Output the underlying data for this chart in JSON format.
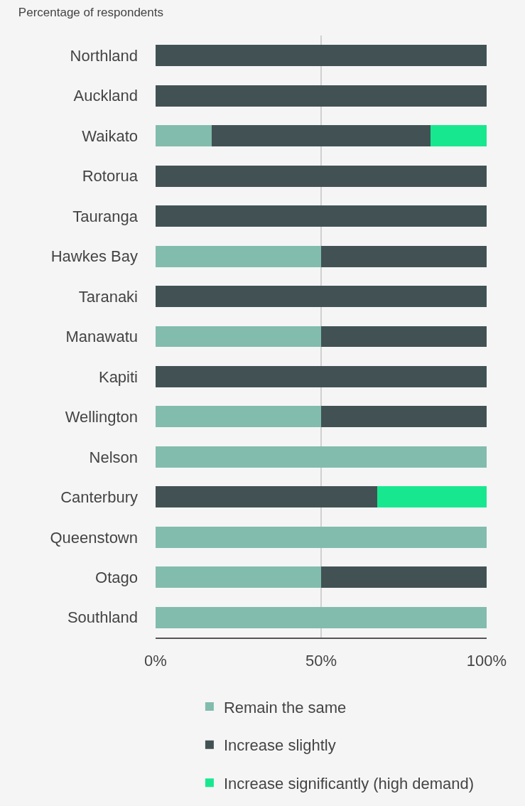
{
  "chart_data": {
    "type": "bar",
    "orientation": "horizontal",
    "stacked": true,
    "title": "Percentage of respondents",
    "categories": [
      "Northland",
      "Auckland",
      "Waikato",
      "Rotorua",
      "Tauranga",
      "Hawkes Bay",
      "Taranaki",
      "Manawatu",
      "Kapiti",
      "Wellington",
      "Nelson",
      "Canterbury",
      "Queenstown",
      "Otago",
      "Southland"
    ],
    "series": [
      {
        "name": "Remain the same",
        "color": "#82bcad",
        "values": [
          0,
          0,
          17,
          0,
          0,
          50,
          0,
          50,
          0,
          50,
          100,
          0,
          100,
          50,
          100
        ]
      },
      {
        "name": "Increase slightly",
        "color": "#425254",
        "values": [
          100,
          100,
          66,
          100,
          100,
          50,
          100,
          50,
          100,
          50,
          0,
          67,
          0,
          50,
          0
        ]
      },
      {
        "name": "Increase significantly (high demand)",
        "color": "#17e88f",
        "values": [
          0,
          0,
          17,
          0,
          0,
          0,
          0,
          0,
          0,
          0,
          0,
          33,
          0,
          0,
          0
        ]
      }
    ],
    "xlim": [
      0,
      100
    ],
    "xticks": [
      {
        "value": 0,
        "label": "0%"
      },
      {
        "value": 50,
        "label": "50%"
      },
      {
        "value": 100,
        "label": "100%"
      }
    ],
    "grid": "x",
    "legend": "bottom"
  }
}
